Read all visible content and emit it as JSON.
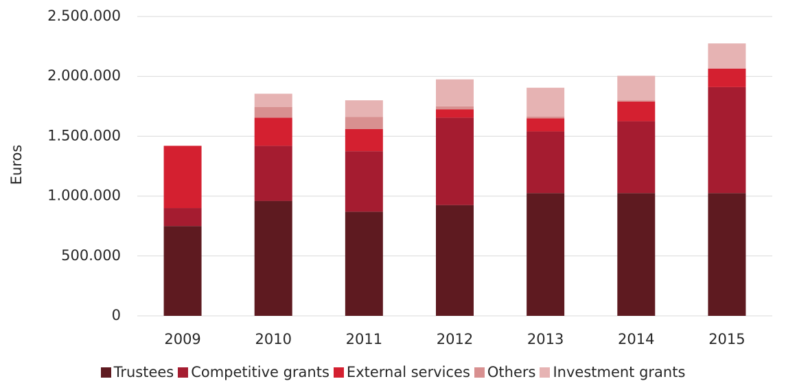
{
  "chart_data": {
    "type": "bar",
    "stacked": true,
    "ylabel": "Euros",
    "categories": [
      "2009",
      "2010",
      "2011",
      "2012",
      "2013",
      "2014",
      "2015"
    ],
    "series": [
      {
        "name": "Trustees",
        "color": "#5e1a20",
        "values": [
          750000,
          960000,
          870000,
          925000,
          1025000,
          1025000,
          1025000
        ]
      },
      {
        "name": "Competitive grants",
        "color": "#a51c30",
        "values": [
          150000,
          460000,
          505000,
          730000,
          515000,
          600000,
          885000
        ]
      },
      {
        "name": "External services",
        "color": "#d42030",
        "values": [
          520000,
          235000,
          185000,
          70000,
          110000,
          165000,
          155000
        ]
      },
      {
        "name": "Others",
        "color": "#d89090",
        "values": [
          0,
          90000,
          100000,
          25000,
          15000,
          10000,
          0
        ]
      },
      {
        "name": "Investment grants",
        "color": "#e6b3b3",
        "values": [
          0,
          110000,
          140000,
          225000,
          240000,
          205000,
          210000
        ]
      }
    ],
    "ylim": [
      0,
      2500000
    ],
    "yticks": [
      0,
      {
        "value": 500000,
        "label": "500.000"
      },
      {
        "value": 1000000,
        "label": "1.000.000"
      },
      {
        "value": 1500000,
        "label": "1.500.000"
      },
      {
        "value": 2000000,
        "label": "2.000.000"
      },
      {
        "value": 2500000,
        "label": "2.500.000"
      }
    ],
    "grid": true,
    "legend": "bottom"
  }
}
